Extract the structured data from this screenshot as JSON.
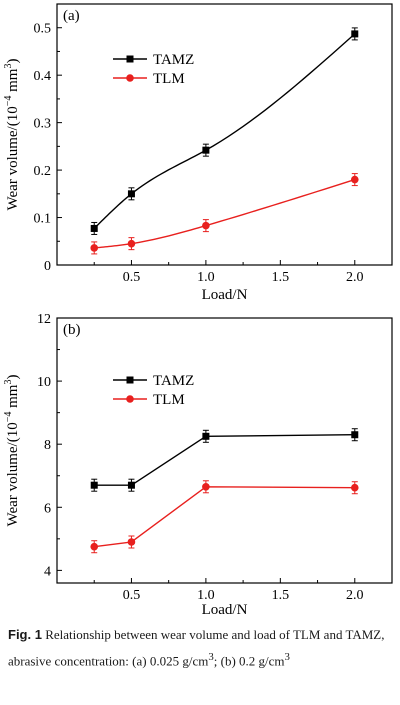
{
  "chart_data": [
    {
      "type": "line",
      "panel_label": "(a)",
      "xlabel": "Load/N",
      "ylabel": "Wear volume/(10",
      "ylabel_exp": "−4",
      "ylabel_unit": " mm",
      "ylabel_unit_exp": "3",
      "ylabel_close": ")",
      "xlim": [
        0,
        2.25
      ],
      "ylim": [
        0,
        0.55
      ],
      "xticks": [
        0.5,
        1.0,
        1.5,
        2.0
      ],
      "xtick_labels": [
        "0.5",
        "1.0",
        "1.5",
        "2.0"
      ],
      "yticks": [
        0,
        0.1,
        0.2,
        0.3,
        0.4,
        0.5
      ],
      "ytick_labels": [
        "0",
        "0.1",
        "0.2",
        "0.3",
        "0.4",
        "0.5"
      ],
      "grid": false,
      "legend_position": "upper-left",
      "x": [
        0.25,
        0.5,
        1.0,
        2.0
      ],
      "series": [
        {
          "name": "TAMZ",
          "color": "#000000",
          "marker": "square",
          "values": [
            0.077,
            0.15,
            0.242,
            0.487
          ]
        },
        {
          "name": "TLM",
          "color": "#e8201e",
          "marker": "circle",
          "values": [
            0.036,
            0.045,
            0.083,
            0.18
          ]
        }
      ]
    },
    {
      "type": "line",
      "panel_label": "(b)",
      "xlabel": "Load/N",
      "ylabel": "Wear volume/(10",
      "ylabel_exp": "−4",
      "ylabel_unit": " mm",
      "ylabel_unit_exp": "3",
      "ylabel_close": ")",
      "xlim": [
        0,
        2.25
      ],
      "ylim": [
        3.6,
        12
      ],
      "xticks": [
        0.5,
        1.0,
        1.5,
        2.0
      ],
      "xtick_labels": [
        "0.5",
        "1.0",
        "1.5",
        "2.0"
      ],
      "yticks": [
        4,
        6,
        8,
        10,
        12
      ],
      "ytick_labels": [
        "4",
        "6",
        "8",
        "10",
        "12"
      ],
      "grid": false,
      "legend_position": "upper-left",
      "x": [
        0.25,
        0.5,
        1.0,
        2.0
      ],
      "series": [
        {
          "name": "TAMZ",
          "color": "#000000",
          "marker": "square",
          "values": [
            6.7,
            6.7,
            8.25,
            8.3
          ]
        },
        {
          "name": "TLM",
          "color": "#e8201e",
          "marker": "circle",
          "values": [
            4.75,
            4.9,
            6.65,
            6.62
          ]
        }
      ]
    }
  ],
  "caption": {
    "label": "Fig. 1",
    "text": "   Relationship between wear volume and load of TLM and TAMZ, abrasive concentration: (a) 0.025 g/cm",
    "sup1": "3",
    "mid": "; (b) 0.2 g/cm",
    "sup2": "3"
  }
}
